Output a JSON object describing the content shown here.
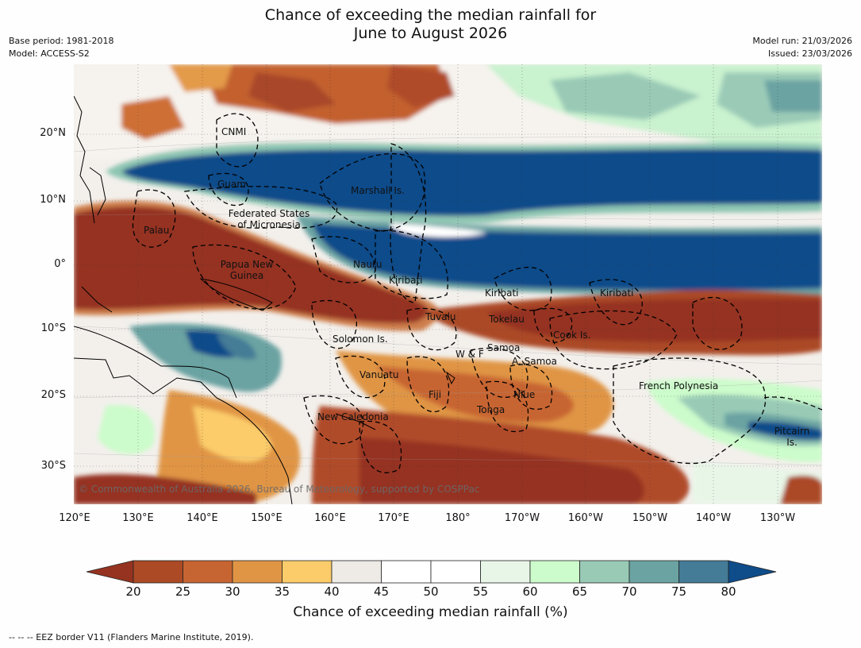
{
  "title": {
    "line1": "Chance of exceeding the median rainfall for",
    "line2": "June to August 2026"
  },
  "info": {
    "base_period": "Base period: 1981-2018",
    "model": "Model: ACCESS-S2",
    "model_run": "Model run: 21/03/2026",
    "issued": "Issued: 23/03/2026"
  },
  "map": {
    "credit": "© Commonwealth of Australia 2026, Bureau of Meteorology, supported by COSPPac",
    "lat_labels": [
      "20°N",
      "10°N",
      "0°",
      "10°S",
      "20°S",
      "30°S"
    ],
    "lon_labels": [
      "120°E",
      "130°E",
      "140°E",
      "150°E",
      "160°E",
      "170°E",
      "180°",
      "170°W",
      "160°W",
      "150°W",
      "140°W",
      "130°W"
    ],
    "regions": {
      "cnmi": "CNMI",
      "guam": "Guam",
      "marshall": "Marshall Is.",
      "fsm_1": "Federated States",
      "fsm_2": "of Micronesia",
      "palau": "Palau",
      "png_1": "Papua New",
      "png_2": "Guinea",
      "nauru": "Nauru",
      "kiribati_w": "Kiribati",
      "kiribati_c": "Kiribati",
      "kiribati_e": "Kiribati",
      "tuvalu": "Tuvalu",
      "tokelau": "Tokelau",
      "cook": "Cook Is.",
      "solomon": "Solomon Is.",
      "wallis": "W & F",
      "samoa": "Samoa",
      "am_samoa": "A. Samoa",
      "vanuatu": "Vanuatu",
      "fiji": "Fiji",
      "niue": "Niue",
      "tonga": "Tonga",
      "new_caledonia": "New Caledonia",
      "french_polynesia": "French Polynesia",
      "pitcairn_1": "Pitcairn",
      "pitcairn_2": "Is."
    }
  },
  "colorbar": {
    "title": "Chance of exceeding median rainfall (%)",
    "ticks": [
      "20",
      "25",
      "30",
      "35",
      "40",
      "45",
      "50",
      "55",
      "60",
      "65",
      "70",
      "75",
      "80"
    ],
    "colors": [
      "#953320",
      "#ab4a25",
      "#c76532",
      "#e09545",
      "#fccc6a",
      "#eeebe6",
      "#ffffff",
      "#ffffff",
      "#e8f6e8",
      "#ccfccb",
      "#99cab6",
      "#6ba3a2",
      "#447b96",
      "#0f4c8a"
    ]
  },
  "footer": "--  --  -- EEZ border V11 (Flanders Marine Institute, 2019)."
}
